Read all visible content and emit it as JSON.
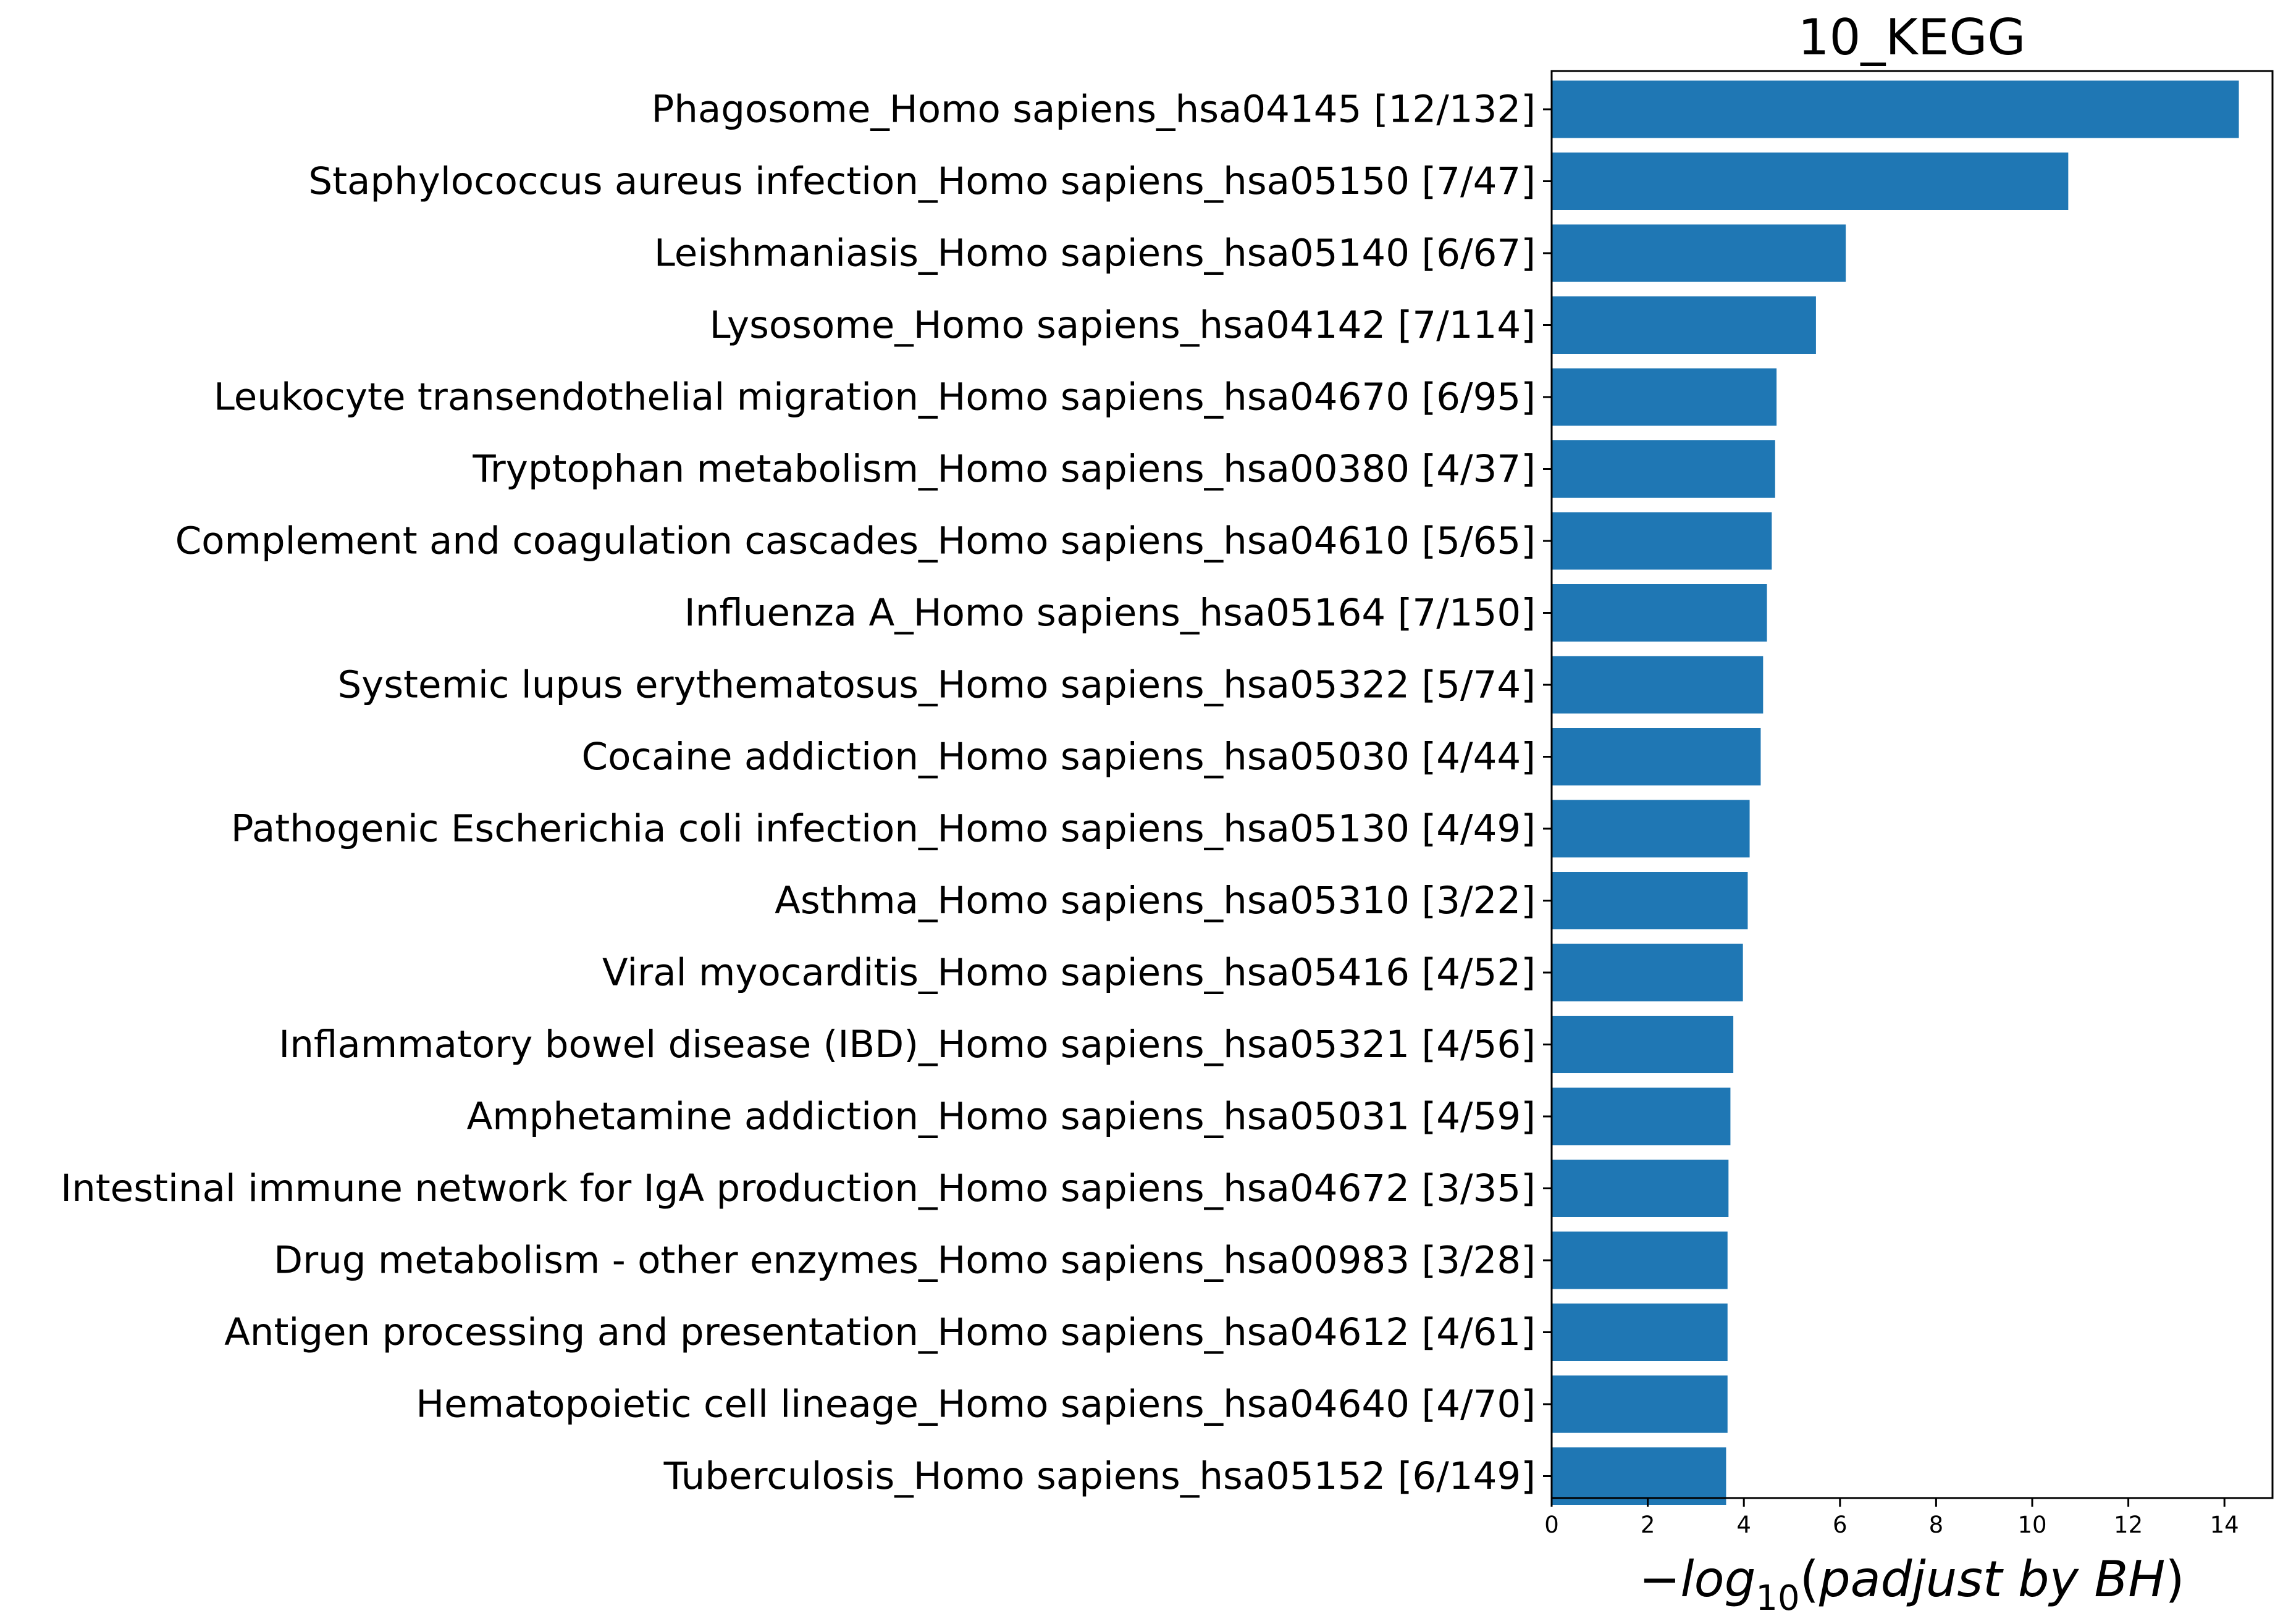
{
  "chart_data": {
    "type": "bar",
    "orientation": "horizontal",
    "title": "10_KEGG",
    "xlabel": {
      "prefix": "−",
      "log": "log",
      "base": "10",
      "open": "(",
      "body": "padjust by BH",
      "close": ")"
    },
    "xlim": [
      0,
      15
    ],
    "xticks": [
      "0",
      "2",
      "4",
      "6",
      "8",
      "10",
      "12",
      "14"
    ],
    "bar_color": "#1f77b4",
    "categories": [
      "Phagosome_Homo sapiens_hsa04145 [12/132]",
      "Staphylococcus aureus infection_Homo sapiens_hsa05150 [7/47]",
      "Leishmaniasis_Homo sapiens_hsa05140 [6/67]",
      "Lysosome_Homo sapiens_hsa04142 [7/114]",
      "Leukocyte transendothelial migration_Homo sapiens_hsa04670 [6/95]",
      "Tryptophan metabolism_Homo sapiens_hsa00380 [4/37]",
      "Complement and coagulation cascades_Homo sapiens_hsa04610 [5/65]",
      "Influenza A_Homo sapiens_hsa05164 [7/150]",
      "Systemic lupus erythematosus_Homo sapiens_hsa05322 [5/74]",
      "Cocaine addiction_Homo sapiens_hsa05030 [4/44]",
      "Pathogenic Escherichia coli infection_Homo sapiens_hsa05130 [4/49]",
      "Asthma_Homo sapiens_hsa05310 [3/22]",
      "Viral myocarditis_Homo sapiens_hsa05416 [4/52]",
      "Inflammatory bowel disease (IBD)_Homo sapiens_hsa05321 [4/56]",
      "Amphetamine addiction_Homo sapiens_hsa05031 [4/59]",
      "Intestinal immune network for IgA production_Homo sapiens_hsa04672 [3/35]",
      "Drug metabolism - other enzymes_Homo sapiens_hsa00983 [3/28]",
      "Antigen processing and presentation_Homo sapiens_hsa04612 [4/61]",
      "Hematopoietic cell lineage_Homo sapiens_hsa04640 [4/70]",
      "Tuberculosis_Homo sapiens_hsa05152 [6/149]"
    ],
    "values": [
      14.3,
      10.75,
      6.12,
      5.5,
      4.68,
      4.65,
      4.58,
      4.48,
      4.4,
      4.35,
      4.12,
      4.08,
      3.98,
      3.78,
      3.72,
      3.68,
      3.66,
      3.66,
      3.66,
      3.63
    ],
    "grid": false,
    "legend": "none"
  }
}
